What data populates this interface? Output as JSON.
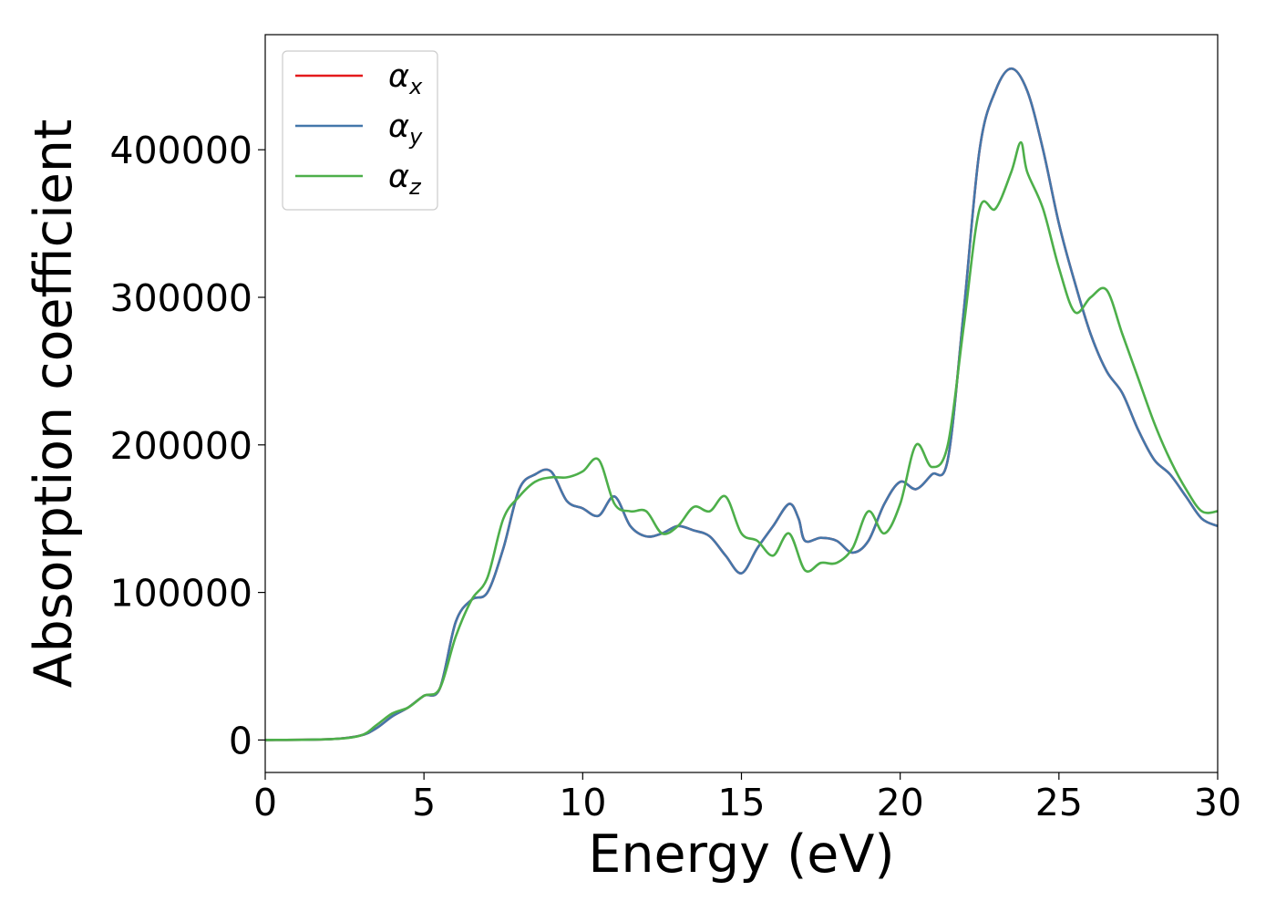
{
  "chart_data": {
    "type": "line",
    "xlabel": "Energy (eV)",
    "ylabel": "Absorption coefficient",
    "xlim": [
      0,
      30
    ],
    "ylim": [
      -22000,
      478000
    ],
    "x_ticks": [
      0,
      5,
      10,
      15,
      20,
      25,
      30
    ],
    "x_tick_labels": [
      "0",
      "5",
      "10",
      "15",
      "20",
      "25",
      "30"
    ],
    "y_ticks": [
      0,
      100000,
      200000,
      300000,
      400000
    ],
    "y_tick_labels": [
      "0",
      "100000",
      "200000",
      "300000",
      "400000"
    ],
    "grid": false,
    "legend_position": "top-left",
    "series": [
      {
        "name": "αx",
        "legend_base": "α",
        "legend_sub": "x",
        "color": "#e41a1c",
        "x": [
          0,
          2,
          3,
          3.5,
          4,
          4.5,
          5,
          5.5,
          6,
          6.5,
          7,
          7.5,
          8,
          8.5,
          9,
          9.5,
          10,
          10.5,
          11,
          11.5,
          12,
          12.5,
          13,
          13.5,
          14,
          14.5,
          15,
          15.5,
          16,
          16.5,
          16.8,
          17,
          17.5,
          18,
          18.5,
          19,
          19.5,
          20,
          20.5,
          21,
          21.5,
          22,
          22.5,
          23,
          23.5,
          24,
          24.5,
          25,
          25.5,
          26,
          26.5,
          27,
          27.5,
          28,
          28.5,
          29,
          29.5,
          30
        ],
        "y": [
          0,
          500,
          3000,
          8000,
          16000,
          22000,
          30000,
          35000,
          80000,
          95000,
          100000,
          130000,
          170000,
          180000,
          182000,
          162000,
          157000,
          152000,
          165000,
          145000,
          138000,
          140000,
          145000,
          142000,
          138000,
          125000,
          113000,
          130000,
          145000,
          160000,
          150000,
          135000,
          137000,
          135000,
          127000,
          135000,
          160000,
          175000,
          170000,
          180000,
          190000,
          290000,
          400000,
          440000,
          455000,
          440000,
          400000,
          350000,
          310000,
          275000,
          250000,
          235000,
          210000,
          190000,
          180000,
          165000,
          150000,
          145000
        ]
      },
      {
        "name": "αy",
        "legend_base": "α",
        "legend_sub": "y",
        "color": "#4477aa",
        "x": [
          0,
          2,
          3,
          3.5,
          4,
          4.5,
          5,
          5.5,
          6,
          6.5,
          7,
          7.5,
          8,
          8.5,
          9,
          9.5,
          10,
          10.5,
          11,
          11.5,
          12,
          12.5,
          13,
          13.5,
          14,
          14.5,
          15,
          15.5,
          16,
          16.5,
          16.8,
          17,
          17.5,
          18,
          18.5,
          19,
          19.5,
          20,
          20.5,
          21,
          21.5,
          22,
          22.5,
          23,
          23.5,
          24,
          24.5,
          25,
          25.5,
          26,
          26.5,
          27,
          27.5,
          28,
          28.5,
          29,
          29.5,
          30
        ],
        "y": [
          0,
          500,
          3000,
          8000,
          16000,
          22000,
          30000,
          35000,
          80000,
          95000,
          100000,
          130000,
          170000,
          180000,
          182000,
          162000,
          157000,
          152000,
          165000,
          145000,
          138000,
          140000,
          145000,
          142000,
          138000,
          125000,
          113000,
          130000,
          145000,
          160000,
          150000,
          135000,
          137000,
          135000,
          127000,
          135000,
          160000,
          175000,
          170000,
          180000,
          190000,
          290000,
          400000,
          440000,
          455000,
          440000,
          400000,
          350000,
          310000,
          275000,
          250000,
          235000,
          210000,
          190000,
          180000,
          165000,
          150000,
          145000
        ]
      },
      {
        "name": "αz",
        "legend_base": "α",
        "legend_sub": "z",
        "color": "#4daf4a",
        "x": [
          0,
          2,
          3,
          3.5,
          4,
          4.5,
          5,
          5.5,
          6,
          6.5,
          7,
          7.5,
          8,
          8.5,
          9,
          9.5,
          10,
          10.5,
          11,
          11.5,
          12,
          12.5,
          13,
          13.5,
          14,
          14.5,
          15,
          15.5,
          16,
          16.5,
          17,
          17.5,
          18,
          18.5,
          19,
          19.5,
          20,
          20.5,
          21,
          21.5,
          22,
          22.5,
          23,
          23.5,
          23.8,
          24,
          24.5,
          25,
          25.5,
          26,
          26.5,
          27,
          27.5,
          28,
          28.5,
          29,
          29.5,
          30
        ],
        "y": [
          0,
          500,
          3000,
          10000,
          18000,
          22000,
          30000,
          35000,
          70000,
          95000,
          110000,
          150000,
          165000,
          175000,
          178000,
          178000,
          182000,
          190000,
          160000,
          155000,
          155000,
          140000,
          145000,
          158000,
          155000,
          165000,
          140000,
          135000,
          125000,
          140000,
          115000,
          120000,
          120000,
          130000,
          155000,
          140000,
          160000,
          200000,
          185000,
          200000,
          280000,
          360000,
          360000,
          385000,
          405000,
          385000,
          360000,
          320000,
          290000,
          300000,
          305000,
          275000,
          245000,
          215000,
          190000,
          170000,
          155000,
          155000
        ]
      }
    ]
  }
}
